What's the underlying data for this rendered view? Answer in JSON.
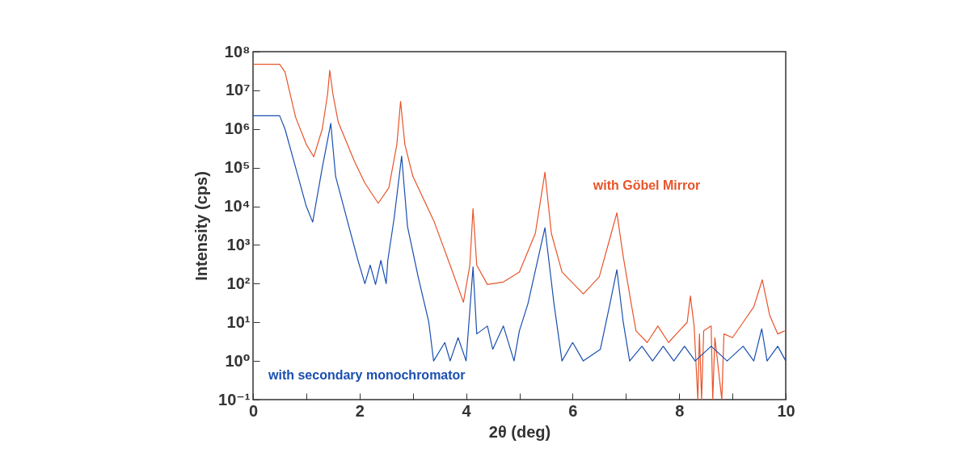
{
  "chart_data": {
    "type": "line",
    "xlabel": "2θ  (deg)",
    "ylabel": "Intensity  (cps)",
    "log": "y",
    "grid": false,
    "legend": false,
    "line_style": "solid",
    "marker": "none",
    "xlim": [
      0,
      10
    ],
    "xticks": [
      0,
      {
        "value": 1,
        "label": null
      },
      2,
      {
        "value": 3,
        "label": null
      },
      4,
      {
        "value": 5,
        "label": null
      },
      6,
      {
        "value": 7,
        "label": null
      },
      8,
      {
        "value": 9,
        "label": null
      },
      10
    ],
    "ylim": [
      0.1,
      100000000
    ],
    "yticks": [
      {
        "value": 0.1,
        "label": "10⁻¹"
      },
      {
        "value": 1,
        "label": "10⁰"
      },
      {
        "value": 10,
        "label": "10¹"
      },
      {
        "value": 100,
        "label": "10²"
      },
      {
        "value": 1000,
        "label": "10³"
      },
      {
        "value": 10000,
        "label": "10⁴"
      },
      {
        "value": 100000,
        "label": "10⁵"
      },
      {
        "value": 1000000,
        "label": "10⁶"
      },
      {
        "value": 10000000,
        "label": "10⁷"
      },
      {
        "value": 100000000,
        "label": "10⁸"
      }
    ],
    "series": [
      {
        "name": "with Göbel Mirror",
        "color": "#e8542a",
        "x": [
          0,
          0.5,
          0.6,
          0.8,
          1.0,
          1.14,
          1.3,
          1.4,
          1.44,
          1.5,
          1.6,
          1.9,
          2.1,
          2.35,
          2.55,
          2.7,
          2.77,
          2.85,
          3.0,
          3.4,
          3.7,
          3.95,
          4.07,
          4.13,
          4.2,
          4.4,
          4.7,
          5.0,
          5.3,
          5.48,
          5.6,
          5.8,
          6.2,
          6.5,
          6.7,
          6.83,
          6.95,
          7.1,
          7.19,
          7.4,
          7.6,
          7.8,
          8.0,
          8.15,
          8.21,
          8.28,
          8.35,
          8.38,
          8.42,
          8.46,
          8.6,
          8.63,
          8.67,
          8.8,
          8.84,
          9.0,
          9.2,
          9.4,
          9.56,
          9.7,
          9.85,
          9.98
        ],
        "values": [
          47000000,
          47000000,
          30000000,
          2000000,
          400000,
          190000,
          1000000,
          8000000,
          33000000,
          8000000,
          1500000,
          150000,
          40000,
          12000,
          30000,
          400000,
          5200000,
          400000,
          60000,
          4000,
          300,
          33,
          300,
          8700,
          300,
          95,
          110,
          200,
          2000,
          76000,
          2000,
          200,
          54,
          150,
          1500,
          6800,
          500,
          30,
          6,
          3,
          8,
          3,
          6,
          10,
          48,
          8,
          0.1,
          5,
          0.1,
          6,
          8,
          0.1,
          4,
          0.1,
          5,
          4,
          10,
          25,
          126,
          15,
          5,
          6
        ]
      },
      {
        "name": "with secondary monochromator",
        "color": "#1a4fb0",
        "x": [
          0,
          0.5,
          0.6,
          0.8,
          1.0,
          1.12,
          1.3,
          1.46,
          1.55,
          1.8,
          1.97,
          2.1,
          2.2,
          2.3,
          2.4,
          2.5,
          2.53,
          2.65,
          2.79,
          2.9,
          3.1,
          3.3,
          3.39,
          3.6,
          3.7,
          3.85,
          4.0,
          4.13,
          4.2,
          4.4,
          4.5,
          4.7,
          4.9,
          5.0,
          5.16,
          5.48,
          5.65,
          5.8,
          6.0,
          6.2,
          6.52,
          6.7,
          6.83,
          6.95,
          7.07,
          7.3,
          7.5,
          7.7,
          7.9,
          8.1,
          8.3,
          8.6,
          8.9,
          9.2,
          9.4,
          9.55,
          9.65,
          9.85,
          10
        ],
        "values": [
          2200000,
          2200000,
          1000000,
          100000,
          10000,
          3900,
          100000,
          1400000,
          60000,
          3000,
          400,
          100,
          300,
          95,
          400,
          100,
          400,
          5000,
          200000,
          3000,
          150,
          10,
          1,
          3,
          1,
          4,
          1,
          270,
          5,
          8,
          2,
          8,
          1,
          6,
          30,
          2800,
          30,
          1,
          3,
          1,
          2,
          30,
          230,
          10,
          1,
          2.4,
          1,
          2.4,
          1,
          2.4,
          1,
          2.4,
          1,
          2.4,
          1,
          6.8,
          1,
          2.4,
          1
        ]
      }
    ]
  }
}
